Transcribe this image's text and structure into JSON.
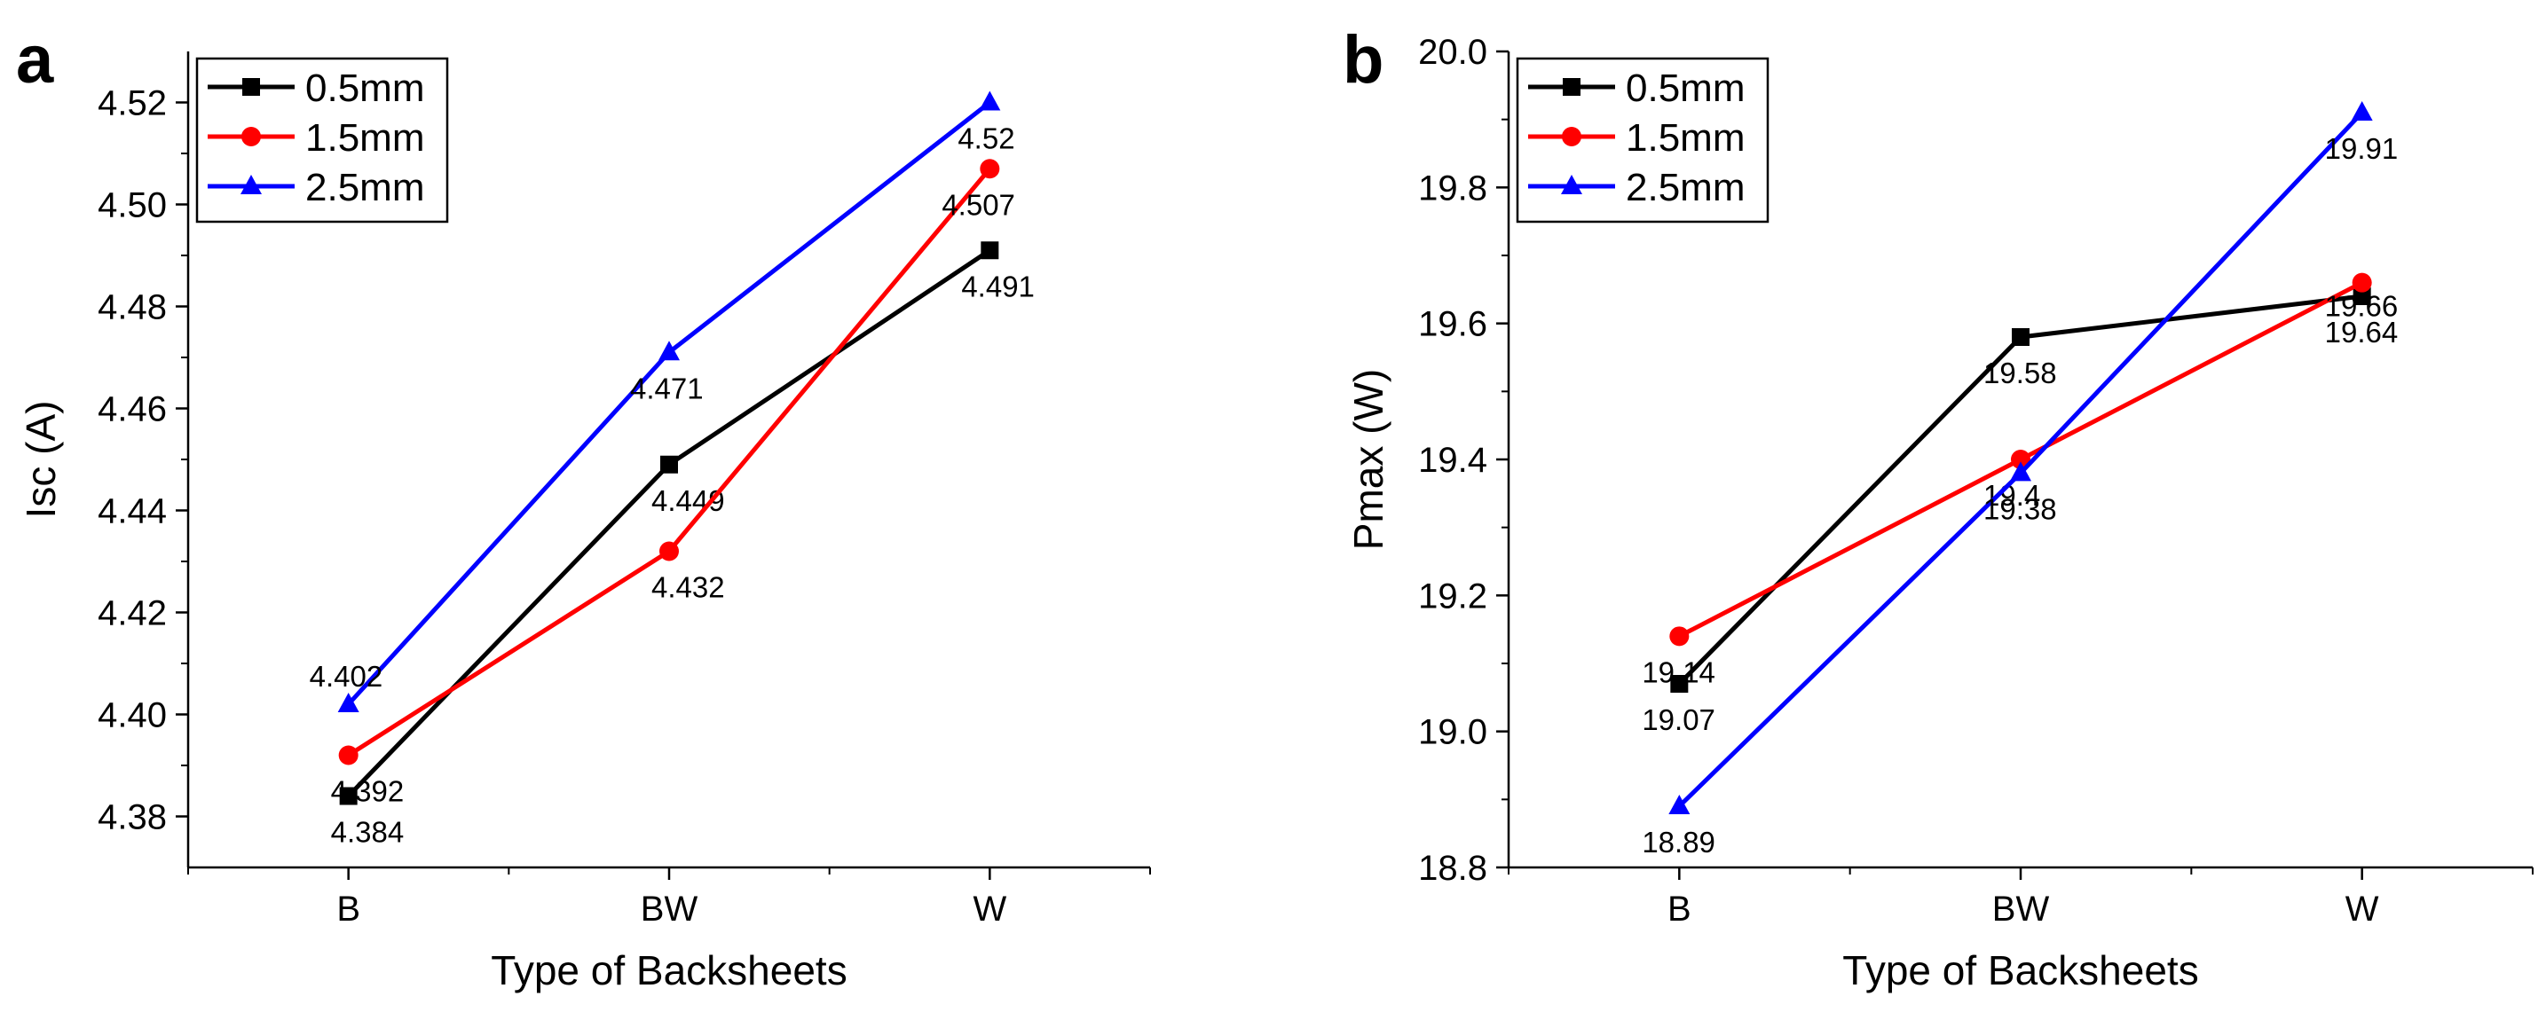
{
  "chart_data": [
    {
      "panel_label": "a",
      "type": "line",
      "categories": [
        "B",
        "BW",
        "W"
      ],
      "xlabel": "Type of Backsheets",
      "ylabel": "Isc (A)",
      "ylim": [
        4.37,
        4.53
      ],
      "yticks": [
        4.38,
        4.4,
        4.42,
        4.44,
        4.46,
        4.48,
        4.5,
        4.52
      ],
      "ytick_labels": [
        "4.38",
        "4.40",
        "4.42",
        "4.44",
        "4.46",
        "4.48",
        "4.50",
        "4.52"
      ],
      "legend_position": "top-left",
      "series": [
        {
          "name": "0.5mm",
          "values": [
            4.384,
            4.449,
            4.491
          ],
          "labels": [
            "4.384",
            "4.449",
            "4.491"
          ],
          "color": "#000000",
          "marker": "square"
        },
        {
          "name": "1.5mm",
          "values": [
            4.392,
            4.432,
            4.507
          ],
          "labels": [
            "4.392",
            "4.432",
            "4.507"
          ],
          "color": "#ff0000",
          "marker": "circle"
        },
        {
          "name": "2.5mm",
          "values": [
            4.402,
            4.471,
            4.52
          ],
          "labels": [
            "4.402",
            "4.471",
            "4.52"
          ],
          "color": "#0000ff",
          "marker": "triangle"
        }
      ]
    },
    {
      "panel_label": "b",
      "type": "line",
      "categories": [
        "B",
        "BW",
        "W"
      ],
      "xlabel": "Type of Backsheets",
      "ylabel": "Pmax (W)",
      "ylim": [
        18.8,
        20.0
      ],
      "yticks": [
        18.8,
        19.0,
        19.2,
        19.4,
        19.6,
        19.8,
        20.0
      ],
      "ytick_labels": [
        "18.8",
        "19.0",
        "19.2",
        "19.4",
        "19.6",
        "19.8",
        "20.0"
      ],
      "legend_position": "top-left",
      "series": [
        {
          "name": "0.5mm",
          "values": [
            19.07,
            19.58,
            19.64
          ],
          "labels": [
            "19.07",
            "19.58",
            "19.64"
          ],
          "color": "#000000",
          "marker": "square"
        },
        {
          "name": "1.5mm",
          "values": [
            19.14,
            19.4,
            19.66
          ],
          "labels": [
            "19.14",
            "19.4",
            "19.66"
          ],
          "color": "#ff0000",
          "marker": "circle"
        },
        {
          "name": "2.5mm",
          "values": [
            18.89,
            19.38,
            19.91
          ],
          "labels": [
            "18.89",
            "19.38",
            "19.91"
          ],
          "color": "#0000ff",
          "marker": "triangle"
        }
      ]
    }
  ]
}
